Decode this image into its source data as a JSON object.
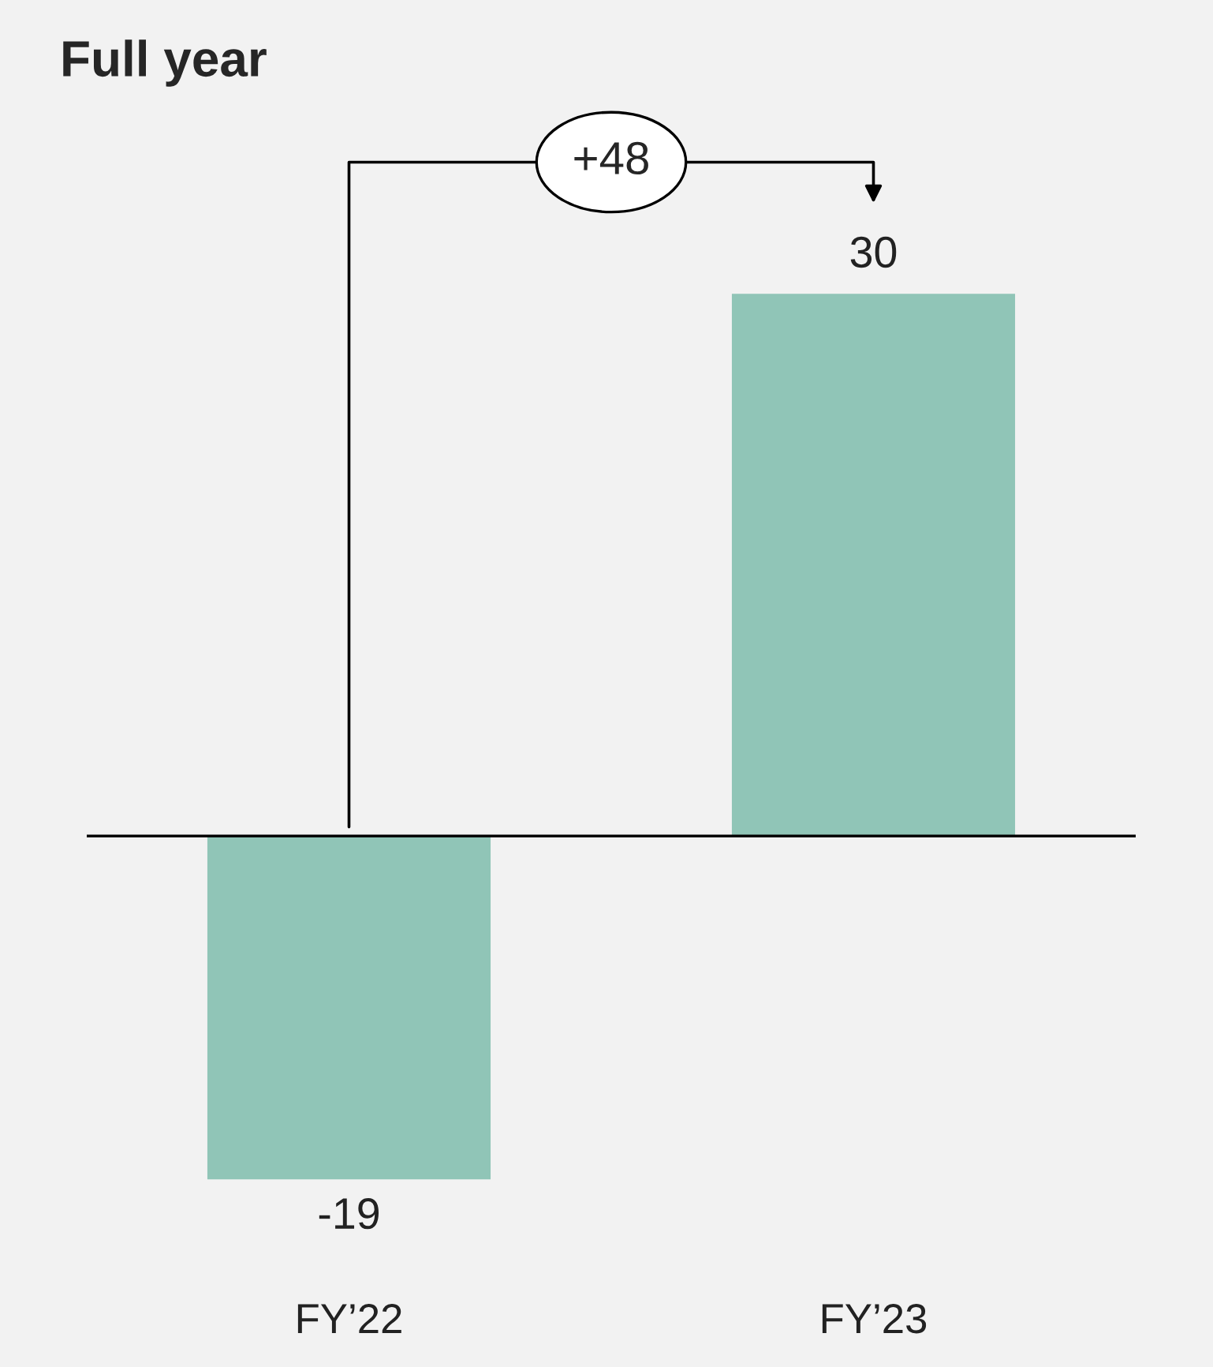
{
  "chart_data": {
    "type": "bar",
    "title": "Full year",
    "categories": [
      "FY’22",
      "FY’23"
    ],
    "values": [
      -19,
      30
    ],
    "color": "#90c5b7",
    "tick_labels": "x",
    "data_labels": true,
    "grid": false,
    "annotations": [
      "+48"
    ]
  }
}
